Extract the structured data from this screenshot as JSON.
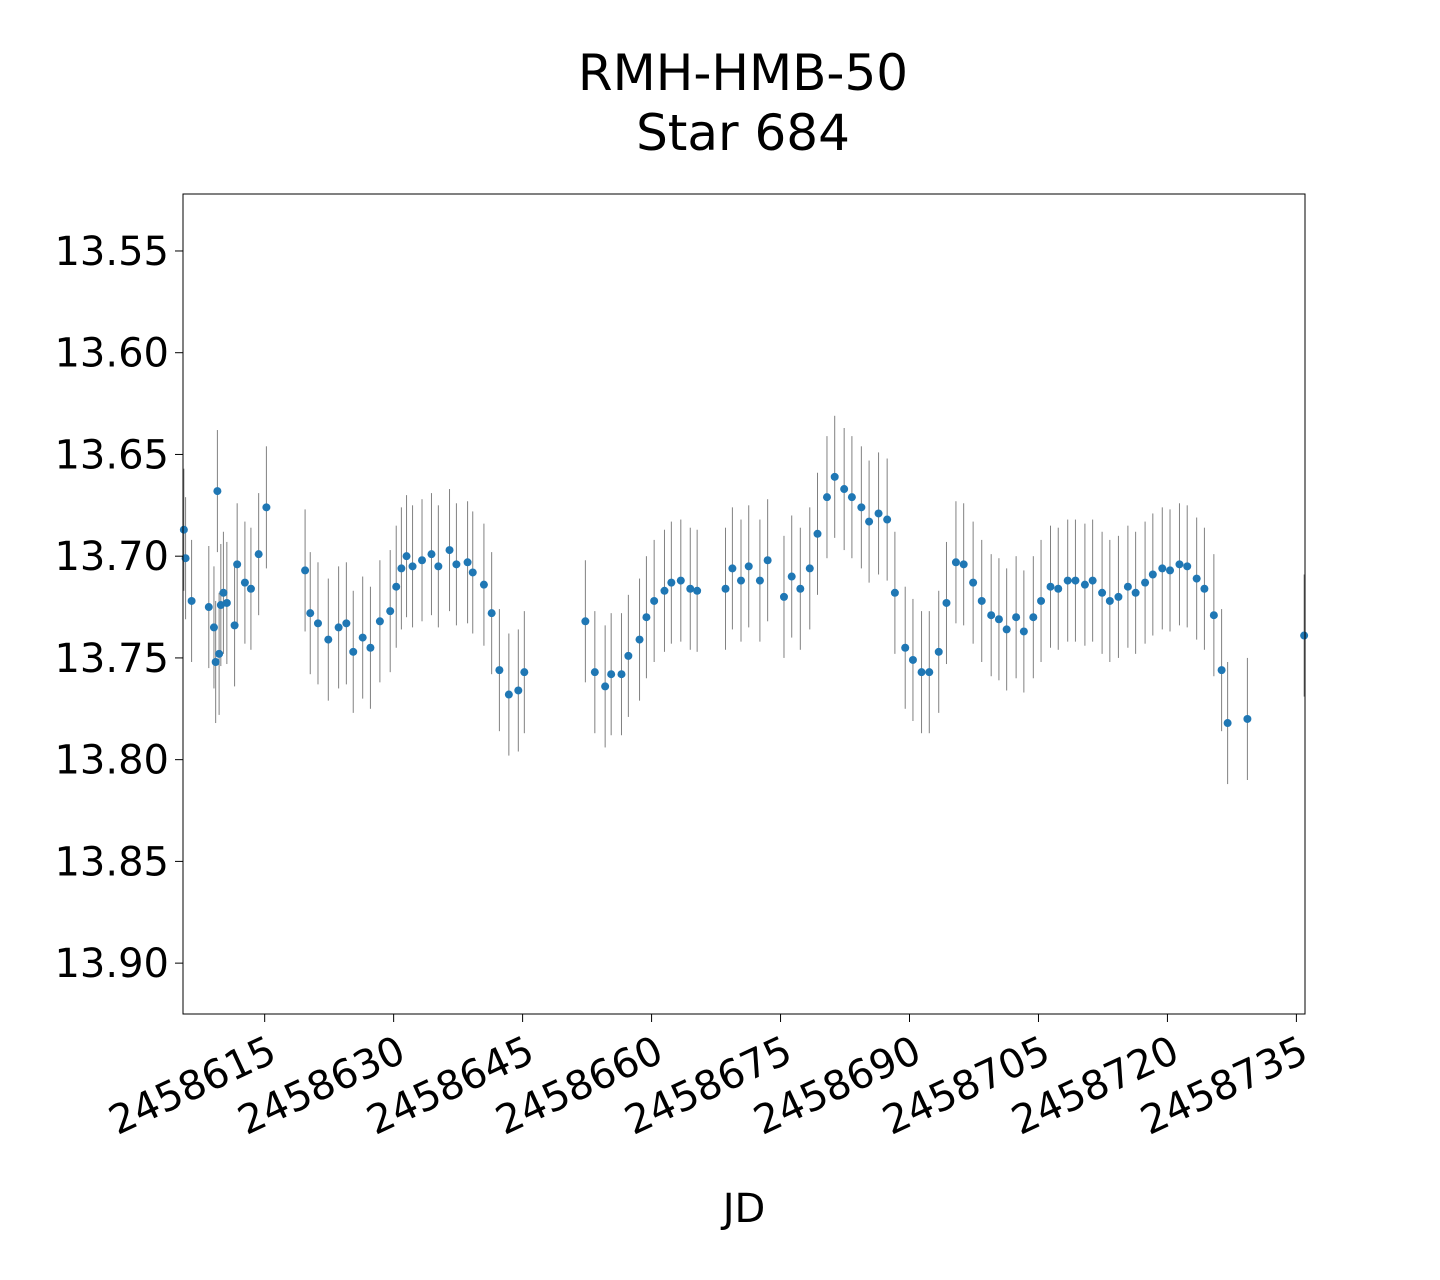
{
  "chart_data": {
    "type": "scatter",
    "title": [
      "RMH-HMB-50",
      "Star 684"
    ],
    "xlabel": "JD",
    "ylabel": "",
    "xlim": [
      2458605.5,
      2458736
    ],
    "ylim": [
      13.925,
      13.522
    ],
    "y_inverted": true,
    "grid": false,
    "legend": "none",
    "x_ticks": [
      2458615,
      2458630,
      2458645,
      2458660,
      2458675,
      2458690,
      2458705,
      2458720,
      2458735
    ],
    "x_tick_labels": [
      "2458615",
      "2458630",
      "2458645",
      "2458660",
      "2458675",
      "2458690",
      "2458705",
      "2458720",
      "2458735"
    ],
    "y_ticks": [
      13.55,
      13.6,
      13.65,
      13.7,
      13.75,
      13.8,
      13.85,
      13.9
    ],
    "y_tick_labels": [
      "13.55",
      "13.60",
      "13.65",
      "13.70",
      "13.75",
      "13.80",
      "13.85",
      "13.90"
    ],
    "colors": {
      "marker": "#1f77b4",
      "errorbar": "#808080"
    },
    "series": [
      {
        "x": [
          2458605.6,
          2458605.8,
          2458606.5,
          2458608.5,
          2458609.1,
          2458609.3,
          2458609.5,
          2458609.7,
          2458609.9,
          2458610.2,
          2458610.6,
          2458611.5,
          2458611.8,
          2458612.7,
          2458613.4,
          2458614.3,
          2458615.2,
          2458619.7,
          2458620.3,
          2458621.2,
          2458622.4,
          2458623.6,
          2458624.5,
          2458625.3,
          2458626.4,
          2458627.3,
          2458628.4,
          2458629.6,
          2458630.3,
          2458630.9,
          2458631.5,
          2458632.2,
          2458633.3,
          2458634.4,
          2458635.2,
          2458636.5,
          2458637.3,
          2458638.6,
          2458639.2,
          2458640.5,
          2458641.4,
          2458642.3,
          2458643.4,
          2458644.5,
          2458645.2,
          2458652.3,
          2458653.4,
          2458654.6,
          2458655.3,
          2458656.5,
          2458657.3,
          2458658.6,
          2458659.4,
          2458660.3,
          2458661.5,
          2458662.3,
          2458663.4,
          2458664.5,
          2458665.3,
          2458668.6,
          2458669.4,
          2458670.4,
          2458671.3,
          2458672.6,
          2458673.5,
          2458675.4,
          2458676.3,
          2458677.3,
          2458678.4,
          2458679.3,
          2458680.4,
          2458681.3,
          2458682.4,
          2458683.3,
          2458684.4,
          2458685.3,
          2458686.4,
          2458687.4,
          2458688.3,
          2458689.5,
          2458690.4,
          2458691.4,
          2458692.3,
          2458693.4,
          2458694.3,
          2458695.4,
          2458696.3,
          2458697.4,
          2458698.4,
          2458699.5,
          2458700.4,
          2458701.3,
          2458702.4,
          2458703.3,
          2458704.4,
          2458705.3,
          2458706.4,
          2458707.3,
          2458708.4,
          2458709.3,
          2458710.4,
          2458711.3,
          2458712.4,
          2458713.3,
          2458714.3,
          2458715.4,
          2458716.3,
          2458717.4,
          2458718.3,
          2458719.4,
          2458720.3,
          2458721.4,
          2458722.3,
          2458723.4,
          2458724.3,
          2458725.4,
          2458726.3,
          2458727.0,
          2458729.3,
          2458735.9
        ],
        "y": [
          13.687,
          13.701,
          13.722,
          13.725,
          13.735,
          13.752,
          13.668,
          13.748,
          13.724,
          13.718,
          13.723,
          13.734,
          13.704,
          13.713,
          13.716,
          13.699,
          13.676,
          13.707,
          13.728,
          13.733,
          13.741,
          13.735,
          13.733,
          13.747,
          13.74,
          13.745,
          13.732,
          13.727,
          13.715,
          13.706,
          13.7,
          13.705,
          13.702,
          13.699,
          13.705,
          13.697,
          13.704,
          13.703,
          13.708,
          13.714,
          13.728,
          13.756,
          13.768,
          13.766,
          13.757,
          13.732,
          13.757,
          13.764,
          13.758,
          13.758,
          13.749,
          13.741,
          13.73,
          13.722,
          13.717,
          13.713,
          13.712,
          13.716,
          13.717,
          13.716,
          13.706,
          13.712,
          13.705,
          13.712,
          13.702,
          13.72,
          13.71,
          13.716,
          13.706,
          13.689,
          13.671,
          13.661,
          13.667,
          13.671,
          13.676,
          13.683,
          13.679,
          13.682,
          13.718,
          13.745,
          13.751,
          13.757,
          13.757,
          13.747,
          13.723,
          13.703,
          13.704,
          13.713,
          13.722,
          13.729,
          13.731,
          13.736,
          13.73,
          13.737,
          13.73,
          13.722,
          13.715,
          13.716,
          13.712,
          13.712,
          13.714,
          13.712,
          13.718,
          13.722,
          13.72,
          13.715,
          13.718,
          13.713,
          13.709,
          13.706,
          13.707,
          13.704,
          13.705,
          13.711,
          13.716,
          13.729,
          13.756,
          13.782,
          13.78,
          13.739
        ]
      }
    ]
  }
}
